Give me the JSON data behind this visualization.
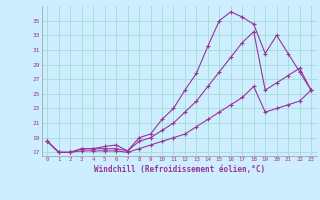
{
  "xlabel": "Windchill (Refroidissement éolien,°C)",
  "bg_color": "#cceeff",
  "grid_color": "#aadddd",
  "line_color": "#993399",
  "xlim": [
    -0.5,
    23.5
  ],
  "ylim": [
    16.5,
    37.0
  ],
  "xticks": [
    0,
    1,
    2,
    3,
    4,
    5,
    6,
    7,
    8,
    9,
    10,
    11,
    12,
    13,
    14,
    15,
    16,
    17,
    18,
    19,
    20,
    21,
    22,
    23
  ],
  "yticks": [
    17,
    19,
    21,
    23,
    25,
    27,
    29,
    31,
    33,
    35
  ],
  "line1_x": [
    0,
    1,
    2,
    3,
    4,
    5,
    6,
    7,
    8,
    9,
    10,
    11,
    12,
    13,
    14,
    15,
    16,
    17,
    18,
    19,
    20,
    21,
    22,
    23
  ],
  "line1_y": [
    18.5,
    17.0,
    17.0,
    17.5,
    17.5,
    17.8,
    18.0,
    17.2,
    19.0,
    19.5,
    21.5,
    23.0,
    25.5,
    27.8,
    31.5,
    35.0,
    36.2,
    35.5,
    34.5,
    30.5,
    33.0,
    30.5,
    28.0,
    25.5
  ],
  "line2_x": [
    0,
    1,
    2,
    3,
    4,
    5,
    6,
    7,
    8,
    9,
    10,
    11,
    12,
    13,
    14,
    15,
    16,
    17,
    18,
    19,
    20,
    21,
    22,
    23
  ],
  "line2_y": [
    18.5,
    17.0,
    17.0,
    17.5,
    17.5,
    17.5,
    17.5,
    17.2,
    18.5,
    19.0,
    20.0,
    21.0,
    22.5,
    24.0,
    26.0,
    28.0,
    30.0,
    32.0,
    33.5,
    25.5,
    26.5,
    27.5,
    28.5,
    25.5
  ],
  "line3_x": [
    0,
    1,
    2,
    3,
    4,
    5,
    6,
    7,
    8,
    9,
    10,
    11,
    12,
    13,
    14,
    15,
    16,
    17,
    18,
    19,
    20,
    21,
    22,
    23
  ],
  "line3_y": [
    18.5,
    17.0,
    17.0,
    17.2,
    17.2,
    17.2,
    17.2,
    17.0,
    17.5,
    18.0,
    18.5,
    19.0,
    19.5,
    20.5,
    21.5,
    22.5,
    23.5,
    24.5,
    26.0,
    22.5,
    23.0,
    23.5,
    24.0,
    25.5
  ]
}
